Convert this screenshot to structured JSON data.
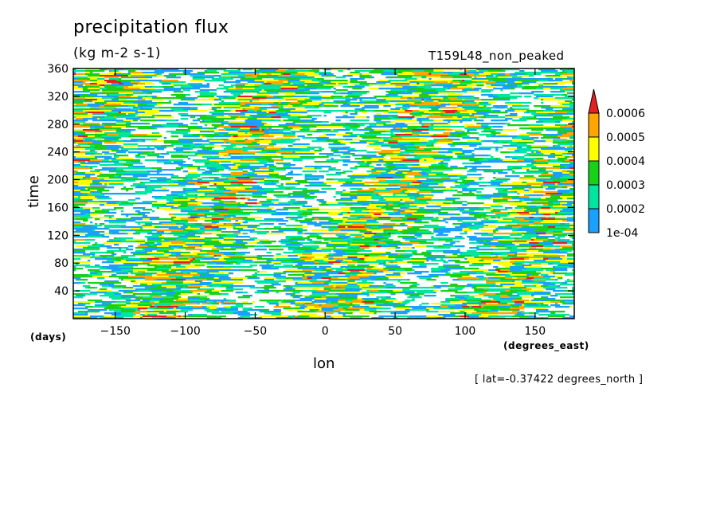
{
  "title": "precipitation flux",
  "units": "(kg m-2 s-1)",
  "run_name": "T159L48_non_peaked",
  "latitude_note": "[ lat=-0.37422 degrees_north ]",
  "chart_data": {
    "type": "heatmap",
    "xlabel": "lon",
    "x_units": "(degrees_east)",
    "ylabel": "time",
    "y_units": "(days)",
    "xlim": [
      -180,
      178
    ],
    "ylim": [
      0,
      360
    ],
    "x_ticks": [
      -150,
      -100,
      -50,
      0,
      50,
      100,
      150
    ],
    "x_tick_labels": [
      "−150",
      "−100",
      "−50",
      "0",
      "50",
      "100",
      "150"
    ],
    "y_ticks": [
      40,
      80,
      120,
      160,
      200,
      240,
      280,
      320,
      360
    ],
    "y_tick_labels": [
      "40",
      "80",
      "120",
      "160",
      "200",
      "240",
      "280",
      "320",
      "360"
    ],
    "colorbar": {
      "levels": [
        0.0001,
        0.0002,
        0.0003,
        0.0004,
        0.0005,
        0.0006
      ],
      "level_labels": [
        "1e-04",
        "0.0002",
        "0.0003",
        "0.0004",
        "0.0005",
        "0.0006"
      ],
      "colors": [
        "#ffffff",
        "#1aa0ff",
        "#00e6a0",
        "#19d119",
        "#ffff00",
        "#ffa500",
        "#e62020"
      ]
    },
    "grid": false
  }
}
